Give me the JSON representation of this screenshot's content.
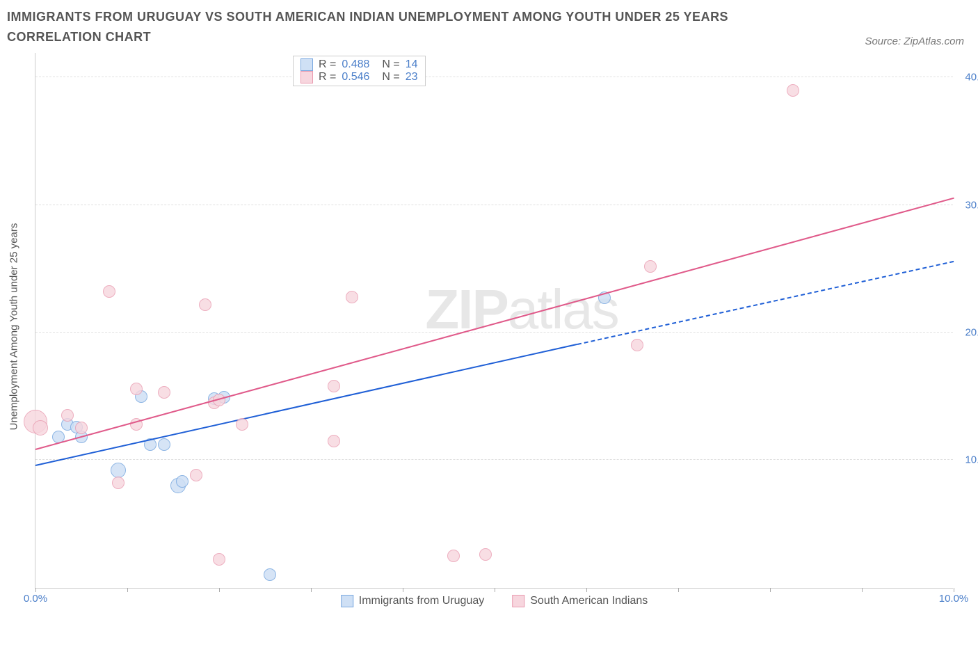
{
  "title": "IMMIGRANTS FROM URUGUAY VS SOUTH AMERICAN INDIAN UNEMPLOYMENT AMONG YOUTH UNDER 25 YEARS CORRELATION CHART",
  "source": "Source: ZipAtlas.com",
  "ylabel": "Unemployment Among Youth under 25 years",
  "watermark_a": "ZIP",
  "watermark_b": "atlas",
  "chart": {
    "type": "scatter",
    "xmin": 0.0,
    "xmax": 10.0,
    "ymin": 0.0,
    "ymax": 42.0,
    "background_color": "#ffffff",
    "grid_color": "#e0e0e0",
    "axis_color": "#cccccc",
    "tick_label_color": "#4a7ec9",
    "tick_fontsize": 15,
    "label_color": "#555555",
    "label_fontsize": 15,
    "x_ticks": [
      0.0,
      1.0,
      2.0,
      3.0,
      4.0,
      5.0,
      6.0,
      7.0,
      8.0,
      9.0,
      10.0
    ],
    "x_tick_labels": {
      "0": "0.0%",
      "10": "10.0%"
    },
    "y_gridlines": [
      10.0,
      20.0,
      30.0,
      40.0
    ],
    "y_tick_labels": {
      "10": "10.0%",
      "20": "20.0%",
      "30": "30.0%",
      "40": "40.0%"
    },
    "legend_top": [
      {
        "swatch_fill": "#cfe0f5",
        "swatch_border": "#7aa9e0",
        "r_label": "R =",
        "r_val": "0.488",
        "n_label": "N =",
        "n_val": "14"
      },
      {
        "swatch_fill": "#f7d6de",
        "swatch_border": "#e99bb0",
        "r_label": "R =",
        "r_val": "0.546",
        "n_label": "N =",
        "n_val": "23"
      }
    ],
    "legend_bottom": [
      {
        "swatch_fill": "#cfe0f5",
        "swatch_border": "#7aa9e0",
        "label": "Immigrants from Uruguay"
      },
      {
        "swatch_fill": "#f7d6de",
        "swatch_border": "#e99bb0",
        "label": "South American Indians"
      }
    ],
    "series": [
      {
        "name": "Immigrants from Uruguay",
        "marker_fill": "#cfe0f5",
        "marker_border": "#7aa9e0",
        "marker_radius": 9,
        "marker_opacity": 0.85,
        "trend_color": "#1f5fd6",
        "trend_start": {
          "x": 0.0,
          "y": 9.5
        },
        "trend_solid_end": {
          "x": 5.9,
          "y": 19.0
        },
        "trend_dash_end": {
          "x": 10.0,
          "y": 25.5
        },
        "points": [
          {
            "x": 0.25,
            "y": 11.8,
            "r": 9
          },
          {
            "x": 0.35,
            "y": 12.8,
            "r": 9
          },
          {
            "x": 0.45,
            "y": 12.6,
            "r": 9
          },
          {
            "x": 0.5,
            "y": 11.8,
            "r": 9
          },
          {
            "x": 0.9,
            "y": 9.2,
            "r": 11
          },
          {
            "x": 1.15,
            "y": 15.0,
            "r": 9
          },
          {
            "x": 1.25,
            "y": 11.2,
            "r": 9
          },
          {
            "x": 1.4,
            "y": 11.2,
            "r": 9
          },
          {
            "x": 1.55,
            "y": 8.0,
            "r": 11
          },
          {
            "x": 1.6,
            "y": 8.3,
            "r": 9
          },
          {
            "x": 1.95,
            "y": 14.8,
            "r": 9
          },
          {
            "x": 2.05,
            "y": 14.9,
            "r": 9
          },
          {
            "x": 2.55,
            "y": 1.0,
            "r": 9
          },
          {
            "x": 6.2,
            "y": 22.7,
            "r": 9
          }
        ]
      },
      {
        "name": "South American Indians",
        "marker_fill": "#f7d6de",
        "marker_border": "#e99bb0",
        "marker_radius": 9,
        "marker_opacity": 0.8,
        "trend_color": "#e05a8a",
        "trend_start": {
          "x": 0.0,
          "y": 10.8
        },
        "trend_solid_end": {
          "x": 10.0,
          "y": 30.5
        },
        "points": [
          {
            "x": 0.0,
            "y": 13.0,
            "r": 17
          },
          {
            "x": 0.05,
            "y": 12.5,
            "r": 11
          },
          {
            "x": 0.35,
            "y": 13.5,
            "r": 9
          },
          {
            "x": 0.5,
            "y": 12.5,
            "r": 9
          },
          {
            "x": 0.8,
            "y": 23.2,
            "r": 9
          },
          {
            "x": 0.9,
            "y": 8.2,
            "r": 9
          },
          {
            "x": 1.1,
            "y": 15.6,
            "r": 9
          },
          {
            "x": 1.1,
            "y": 12.8,
            "r": 9
          },
          {
            "x": 1.4,
            "y": 15.3,
            "r": 9
          },
          {
            "x": 1.75,
            "y": 8.8,
            "r": 9
          },
          {
            "x": 1.85,
            "y": 22.2,
            "r": 9
          },
          {
            "x": 1.95,
            "y": 14.5,
            "r": 9
          },
          {
            "x": 2.0,
            "y": 2.2,
            "r": 9
          },
          {
            "x": 2.0,
            "y": 14.7,
            "r": 9
          },
          {
            "x": 2.25,
            "y": 12.8,
            "r": 9
          },
          {
            "x": 3.25,
            "y": 15.8,
            "r": 9
          },
          {
            "x": 3.25,
            "y": 11.5,
            "r": 9
          },
          {
            "x": 3.45,
            "y": 22.8,
            "r": 9
          },
          {
            "x": 4.55,
            "y": 2.5,
            "r": 9
          },
          {
            "x": 4.9,
            "y": 2.6,
            "r": 9
          },
          {
            "x": 6.55,
            "y": 19.0,
            "r": 9
          },
          {
            "x": 6.7,
            "y": 25.2,
            "r": 9
          },
          {
            "x": 8.25,
            "y": 39.0,
            "r": 9
          }
        ]
      }
    ]
  }
}
